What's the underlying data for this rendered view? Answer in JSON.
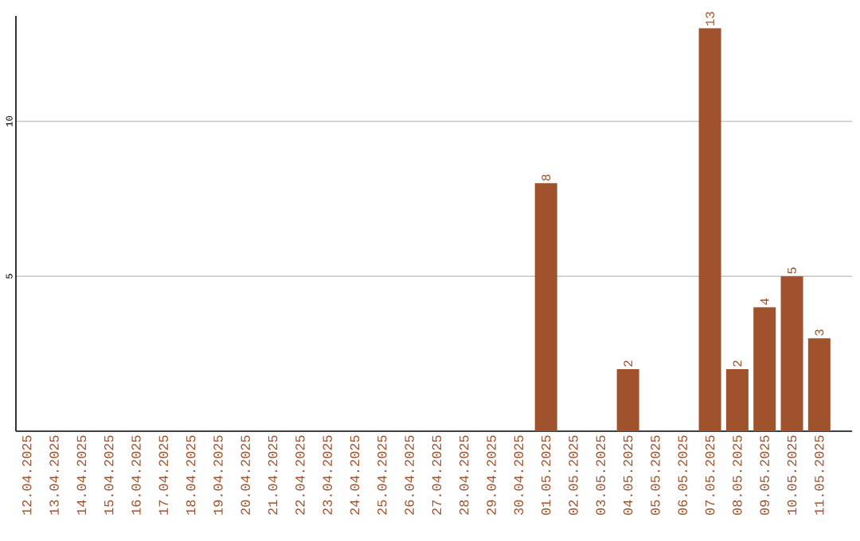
{
  "chart_data": {
    "type": "bar",
    "categories": [
      "12.04.2025",
      "13.04.2025",
      "14.04.2025",
      "15.04.2025",
      "16.04.2025",
      "17.04.2025",
      "18.04.2025",
      "19.04.2025",
      "20.04.2025",
      "21.04.2025",
      "22.04.2025",
      "23.04.2025",
      "24.04.2025",
      "25.04.2025",
      "26.04.2025",
      "27.04.2025",
      "28.04.2025",
      "29.04.2025",
      "30.04.2025",
      "01.05.2025",
      "02.05.2025",
      "03.05.2025",
      "04.05.2025",
      "05.05.2025",
      "06.05.2025",
      "07.05.2025",
      "08.05.2025",
      "09.05.2025",
      "10.05.2025",
      "11.05.2025"
    ],
    "values": [
      0,
      0,
      0,
      0,
      0,
      0,
      0,
      0,
      0,
      0,
      0,
      0,
      0,
      0,
      0,
      0,
      0,
      0,
      0,
      8,
      0,
      0,
      2,
      0,
      0,
      13,
      2,
      4,
      5,
      3
    ],
    "value_labels": [
      null,
      null,
      null,
      null,
      null,
      null,
      null,
      null,
      null,
      null,
      null,
      null,
      null,
      null,
      null,
      null,
      null,
      null,
      null,
      "8",
      null,
      null,
      "2",
      null,
      null,
      "13",
      "2",
      "4",
      "5",
      "3"
    ],
    "color": "#a0522d",
    "ylim": [
      0,
      13.4
    ],
    "yticks": [
      5,
      10
    ],
    "grid": "y"
  }
}
